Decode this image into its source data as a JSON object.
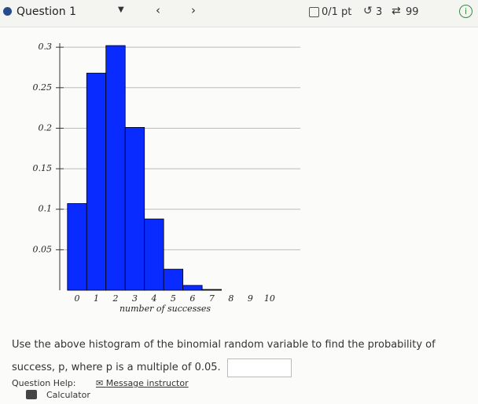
{
  "header": {
    "question": "Question 1",
    "points": "0/1 pt",
    "retries": "3",
    "attempts": "99"
  },
  "chart_data": {
    "type": "bar",
    "x_label": "number of successes",
    "x": [
      0,
      1,
      2,
      3,
      4,
      5,
      6,
      7,
      8,
      9,
      10
    ],
    "values": [
      0.107,
      0.268,
      0.302,
      0.201,
      0.088,
      0.026,
      0.006,
      0.001,
      0,
      0,
      0
    ],
    "color": "#0a2bff",
    "xlim": [
      -0.9,
      11.6
    ],
    "ylim": [
      0,
      0.305
    ],
    "yticks": [
      0.05,
      0.1,
      0.15,
      0.2,
      0.25,
      0.3
    ],
    "grid": true
  },
  "question": {
    "text": "Use the above histogram of the binomial random variable to find the probability of success, p, where p is a multiple of 0.05."
  },
  "help": {
    "label": "Question Help:",
    "message": "Message instructor",
    "calculator": "Calculator"
  }
}
